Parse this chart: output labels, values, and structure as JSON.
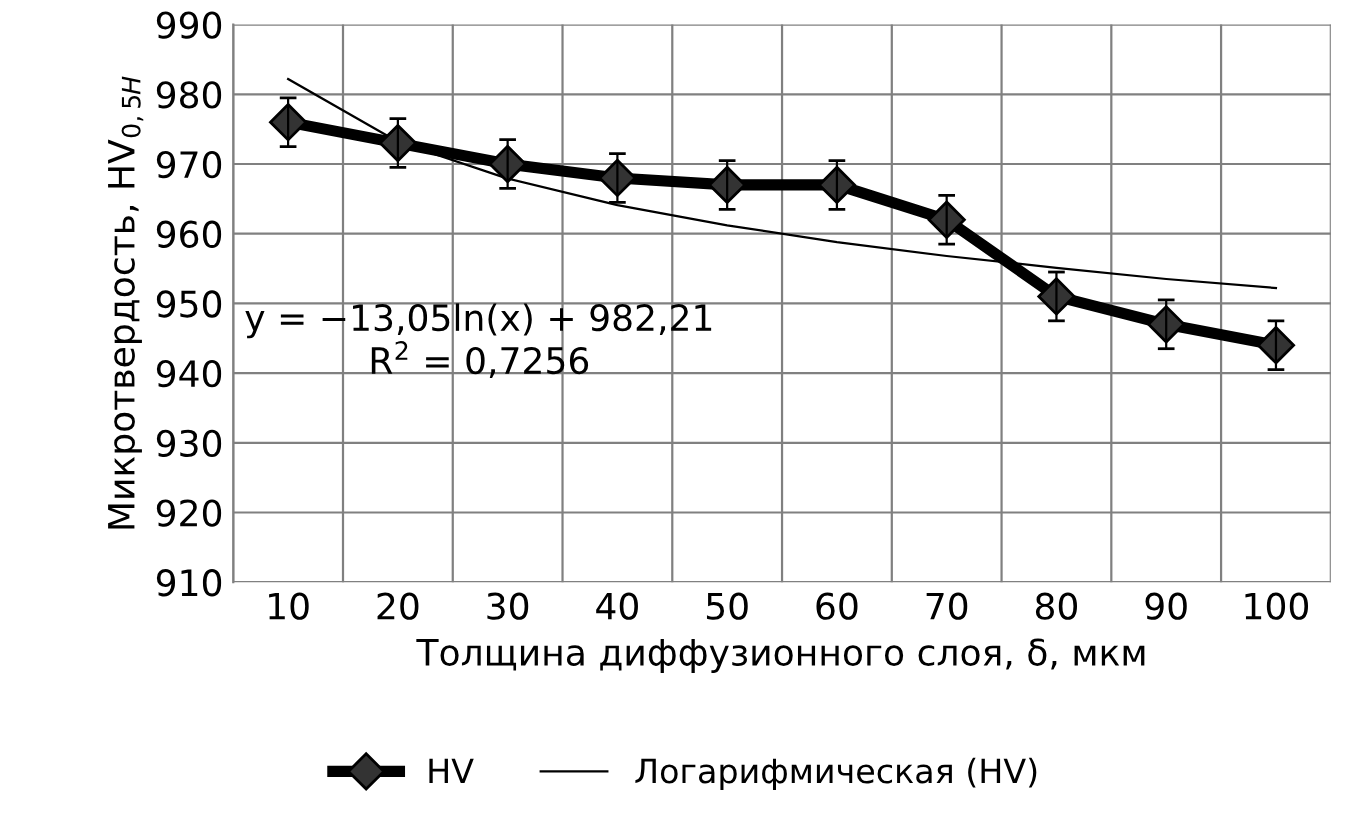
{
  "chart_data": {
    "type": "line",
    "xlabel": "Толщина диффузионного слоя, δ, мкм",
    "ylabel": "Микротвердость, HV$_{0,5H}$",
    "categories": [
      "10",
      "20",
      "30",
      "40",
      "50",
      "60",
      "70",
      "80",
      "90",
      "100"
    ],
    "series": [
      {
        "name": "HV",
        "color": "#000000",
        "values": [
          976,
          973,
          970,
          968,
          967,
          967,
          962,
          951,
          947,
          944
        ],
        "errors": [
          3.5,
          3.5,
          3.5,
          3.5,
          3.5,
          3.5,
          3.5,
          3.5,
          3.5,
          3.5
        ],
        "marker": "diamond"
      },
      {
        "name": "Логарифмическая (HV)",
        "color": "#000000",
        "values": [
          982.2,
          973.2,
          967.9,
          964.1,
          961.2,
          958.8,
          956.8,
          955.1,
          953.5,
          952.2
        ],
        "marker": "none"
      }
    ],
    "annotations": [
      "y = −13,05ln(x) + 982,21\nR$^{2}$ = 0,7256"
    ],
    "ylim": [
      910,
      990
    ],
    "yticks": [
      910,
      920,
      930,
      940,
      950,
      960,
      970,
      980,
      990
    ],
    "grid": true,
    "legend": "bottom"
  }
}
